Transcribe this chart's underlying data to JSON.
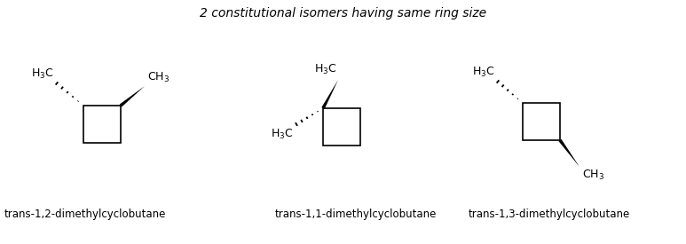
{
  "title": "2 constitutional isomers having same ring size",
  "title_fontsize": 10,
  "label1": "trans-1,2-dimethylcyclobutane",
  "label2": "trans-1,1-dimethylcyclobutane",
  "label3": "trans-1,3-dimethylcyclobutane",
  "label_fontsize": 8.5,
  "bg_color": "#ffffff",
  "line_color": "#000000",
  "fig_width": 7.73,
  "fig_height": 2.75,
  "dpi": 100
}
